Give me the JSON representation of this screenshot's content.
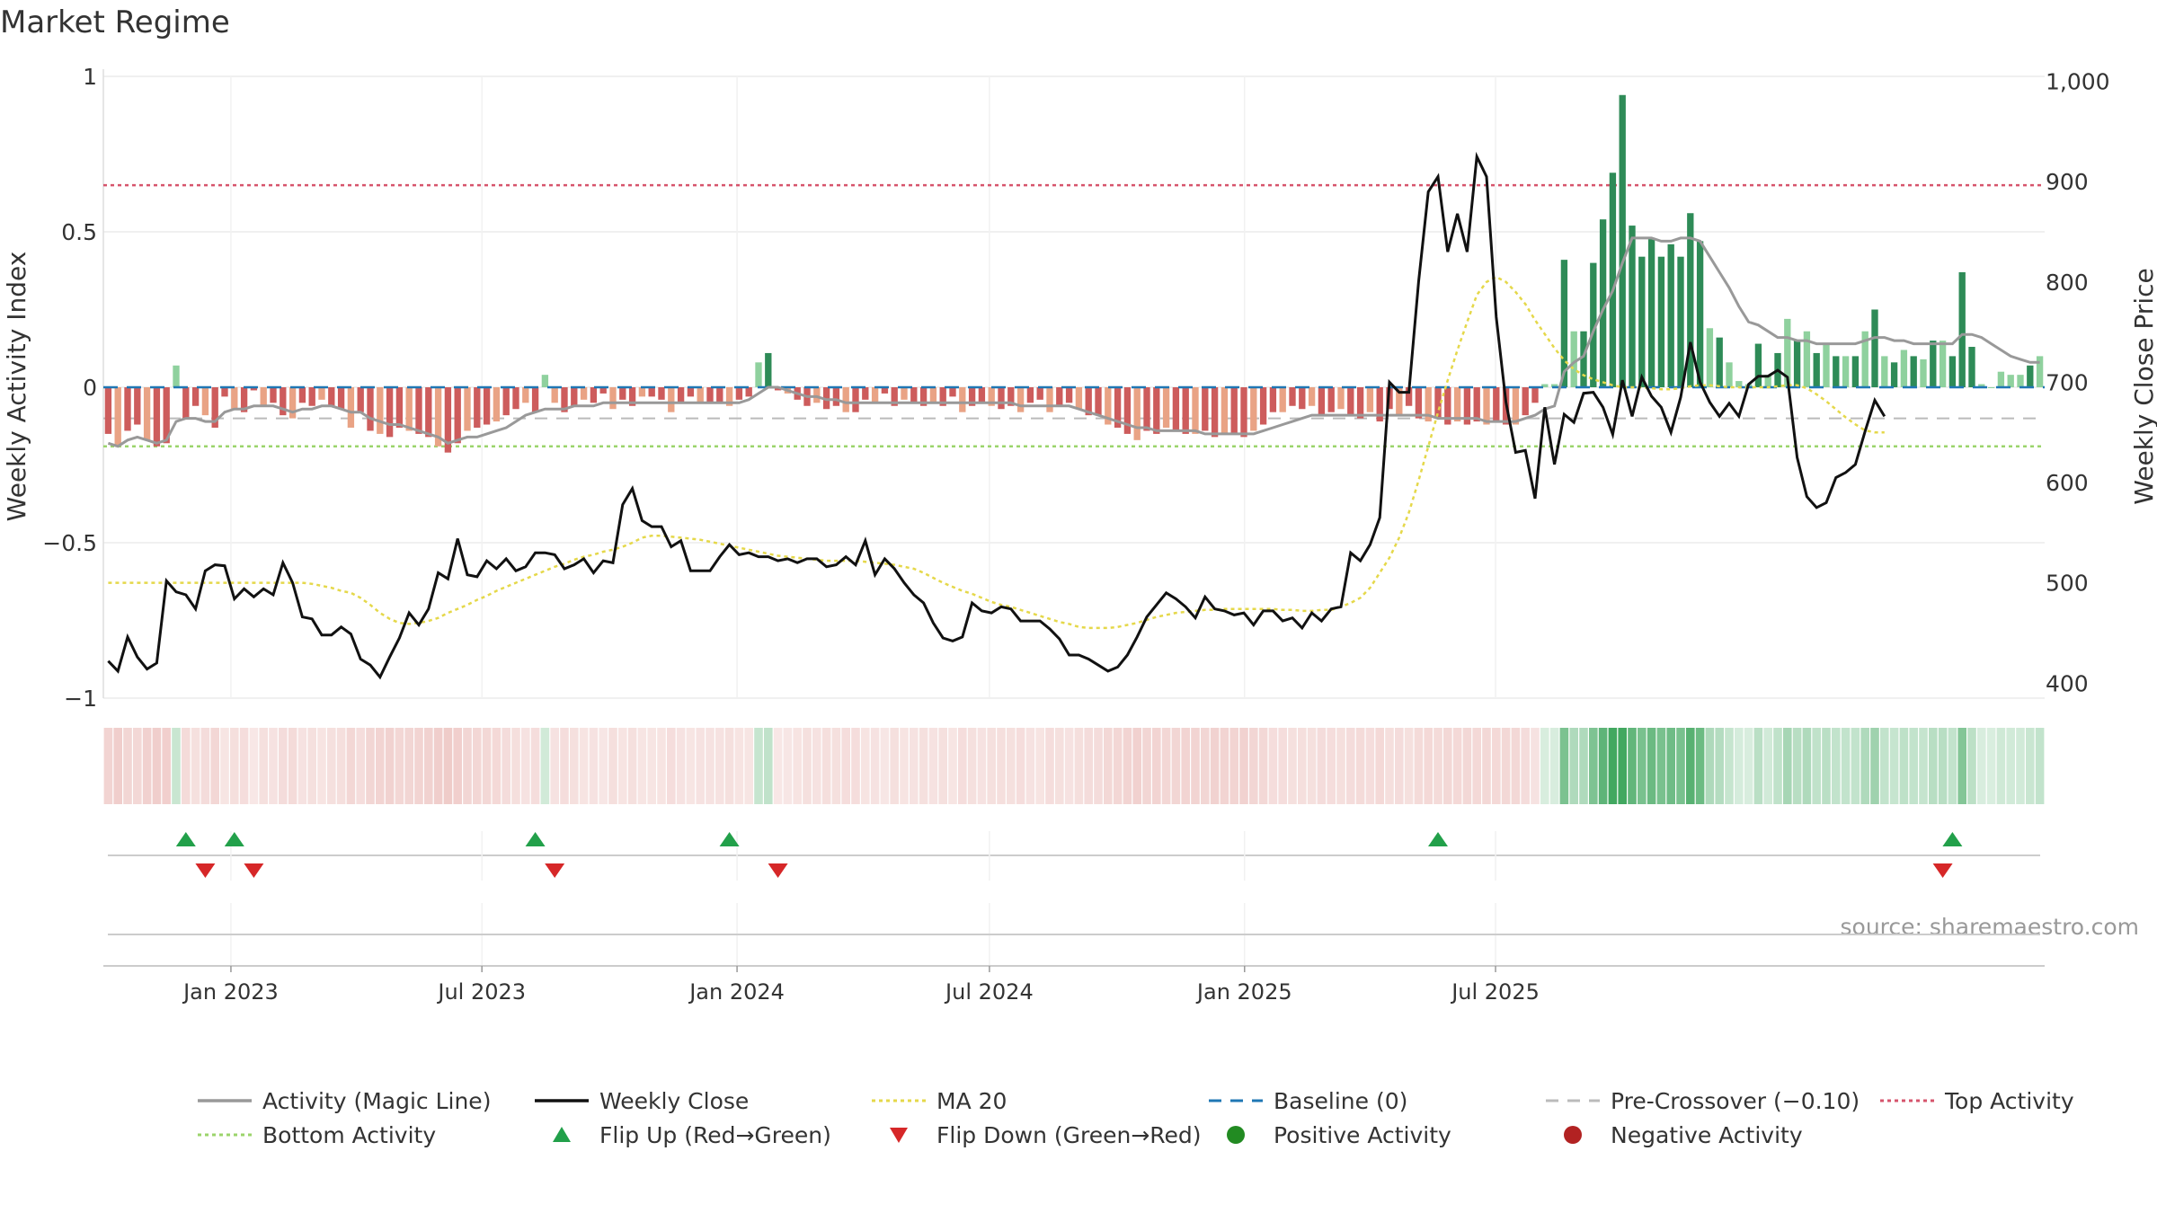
{
  "title": "Market Regime",
  "source": "source: sharemaestro.com",
  "colors": {
    "pos_dark": "#2e8b57",
    "pos_light": "#8fd19e",
    "neg_dark": "#cd5c5c",
    "neg_light": "#e9a385",
    "activity_line": "#999999",
    "close_line": "#111111",
    "ma_line": "#e5d84a",
    "baseline": "#1f77b4",
    "pre_crossover": "#bbbbbb",
    "top_line": "#d6546c",
    "bottom_line": "#9bd46b",
    "flip_up": "#22a04a",
    "flip_down": "#d62728",
    "pos_marker": "#228b22",
    "neg_marker": "#b22222",
    "strip_pos": "#2e9e4f",
    "strip_neg": "#d9827c"
  },
  "chart_data": {
    "type": "bar",
    "x_start": "2022-10-01",
    "x_step_days": 7,
    "x_ticks": [
      "Jan 2023",
      "Jul 2023",
      "Jan 2024",
      "Jul 2024",
      "Jan 2025",
      "Jul 2025"
    ],
    "left_axis": {
      "label": "Weekly Activity Index",
      "ylim": [
        -1,
        1
      ],
      "ticks": [
        "1",
        "0.5",
        "0",
        "−0.5",
        "−1"
      ]
    },
    "right_axis": {
      "label": "Weekly Close Price",
      "ylim": [
        385,
        1005
      ],
      "ticks": [
        "1,000",
        "900",
        "800",
        "700",
        "600",
        "500",
        "400"
      ]
    },
    "reference_lines": {
      "baseline": 0,
      "pre_crossover": -0.1,
      "top": 0.65,
      "bottom": -0.19
    },
    "activity": [
      -0.15,
      -0.19,
      -0.14,
      -0.12,
      -0.17,
      -0.19,
      -0.18,
      0.07,
      -0.1,
      -0.06,
      -0.09,
      -0.13,
      -0.03,
      -0.07,
      -0.08,
      -0.01,
      -0.06,
      -0.05,
      -0.09,
      -0.1,
      -0.05,
      -0.06,
      -0.04,
      -0.06,
      -0.07,
      -0.13,
      -0.08,
      -0.14,
      -0.15,
      -0.16,
      -0.13,
      -0.14,
      -0.15,
      -0.16,
      -0.19,
      -0.21,
      -0.18,
      -0.14,
      -0.13,
      -0.12,
      -0.11,
      -0.09,
      -0.07,
      -0.05,
      -0.08,
      0.04,
      -0.05,
      -0.08,
      -0.06,
      -0.04,
      -0.05,
      -0.02,
      -0.07,
      -0.04,
      -0.06,
      -0.03,
      -0.03,
      -0.04,
      -0.08,
      -0.05,
      -0.03,
      -0.05,
      -0.05,
      -0.05,
      -0.06,
      -0.04,
      -0.03,
      0.08,
      0.11,
      -0.01,
      -0.02,
      -0.04,
      -0.06,
      -0.05,
      -0.07,
      -0.06,
      -0.08,
      -0.08,
      -0.04,
      -0.05,
      -0.02,
      -0.06,
      -0.04,
      -0.05,
      -0.06,
      -0.05,
      -0.06,
      -0.03,
      -0.08,
      -0.06,
      -0.05,
      -0.06,
      -0.07,
      -0.06,
      -0.08,
      -0.05,
      -0.04,
      -0.08,
      -0.06,
      -0.05,
      -0.07,
      -0.09,
      -0.09,
      -0.12,
      -0.13,
      -0.15,
      -0.17,
      -0.14,
      -0.15,
      -0.13,
      -0.14,
      -0.15,
      -0.15,
      -0.14,
      -0.16,
      -0.15,
      -0.15,
      -0.16,
      -0.14,
      -0.12,
      -0.08,
      -0.08,
      -0.06,
      -0.07,
      -0.06,
      -0.09,
      -0.08,
      -0.07,
      -0.09,
      -0.1,
      -0.08,
      -0.11,
      -0.07,
      -0.09,
      -0.06,
      -0.1,
      -0.11,
      -0.1,
      -0.12,
      -0.11,
      -0.12,
      -0.11,
      -0.12,
      -0.11,
      -0.12,
      -0.12,
      -0.09,
      -0.05,
      0.01,
      0.01,
      0.41,
      0.18,
      0.18,
      0.4,
      0.54,
      0.69,
      0.94,
      0.52,
      0.42,
      0.48,
      0.42,
      0.46,
      0.42,
      0.56,
      0.47,
      0.19,
      0.16,
      0.08,
      0.02,
      0.01,
      0.14,
      0.04,
      0.11,
      0.22,
      0.15,
      0.18,
      0.11,
      0.14,
      0.1,
      0.1,
      0.1,
      0.18,
      0.25,
      0.1,
      0.08,
      0.12,
      0.1,
      0.09,
      0.15,
      0.15,
      0.1,
      0.37,
      0.13,
      0.01,
      0.0,
      0.05,
      0.04,
      0.04,
      0.07,
      0.1
    ],
    "magic_line": [
      -0.18,
      -0.19,
      -0.17,
      -0.16,
      -0.17,
      -0.18,
      -0.17,
      -0.11,
      -0.1,
      -0.1,
      -0.11,
      -0.11,
      -0.08,
      -0.07,
      -0.07,
      -0.06,
      -0.06,
      -0.06,
      -0.07,
      -0.08,
      -0.07,
      -0.07,
      -0.06,
      -0.06,
      -0.07,
      -0.08,
      -0.08,
      -0.1,
      -0.11,
      -0.12,
      -0.12,
      -0.13,
      -0.14,
      -0.15,
      -0.16,
      -0.18,
      -0.17,
      -0.16,
      -0.16,
      -0.15,
      -0.14,
      -0.13,
      -0.11,
      -0.09,
      -0.08,
      -0.07,
      -0.07,
      -0.07,
      -0.06,
      -0.06,
      -0.06,
      -0.05,
      -0.05,
      -0.05,
      -0.05,
      -0.05,
      -0.05,
      -0.05,
      -0.05,
      -0.05,
      -0.05,
      -0.05,
      -0.05,
      -0.05,
      -0.05,
      -0.05,
      -0.04,
      -0.02,
      0.0,
      0.0,
      -0.01,
      -0.02,
      -0.03,
      -0.03,
      -0.04,
      -0.04,
      -0.05,
      -0.05,
      -0.05,
      -0.05,
      -0.05,
      -0.05,
      -0.05,
      -0.05,
      -0.05,
      -0.05,
      -0.05,
      -0.05,
      -0.05,
      -0.05,
      -0.05,
      -0.05,
      -0.05,
      -0.05,
      -0.06,
      -0.06,
      -0.06,
      -0.06,
      -0.06,
      -0.06,
      -0.07,
      -0.08,
      -0.09,
      -0.1,
      -0.11,
      -0.12,
      -0.13,
      -0.13,
      -0.14,
      -0.14,
      -0.14,
      -0.14,
      -0.14,
      -0.15,
      -0.15,
      -0.15,
      -0.15,
      -0.15,
      -0.15,
      -0.14,
      -0.13,
      -0.12,
      -0.11,
      -0.1,
      -0.09,
      -0.09,
      -0.09,
      -0.09,
      -0.09,
      -0.09,
      -0.09,
      -0.09,
      -0.09,
      -0.09,
      -0.09,
      -0.09,
      -0.09,
      -0.1,
      -0.1,
      -0.1,
      -0.1,
      -0.1,
      -0.11,
      -0.11,
      -0.11,
      -0.11,
      -0.1,
      -0.09,
      -0.07,
      -0.06,
      0.05,
      0.08,
      0.1,
      0.18,
      0.25,
      0.31,
      0.4,
      0.48,
      0.48,
      0.48,
      0.47,
      0.47,
      0.48,
      0.48,
      0.47,
      0.42,
      0.37,
      0.32,
      0.26,
      0.21,
      0.2,
      0.18,
      0.16,
      0.16,
      0.15,
      0.15,
      0.14,
      0.14,
      0.14,
      0.14,
      0.14,
      0.15,
      0.16,
      0.16,
      0.15,
      0.15,
      0.14,
      0.14,
      0.14,
      0.14,
      0.14,
      0.17,
      0.17,
      0.16,
      0.14,
      0.12,
      0.1,
      0.09,
      0.08,
      0.08
    ],
    "weekly_close": [
      422,
      412,
      446,
      426,
      414,
      420,
      502,
      491,
      488,
      474,
      512,
      518,
      517,
      484,
      494,
      486,
      494,
      488,
      520,
      500,
      466,
      464,
      448,
      448,
      456,
      449,
      424,
      418,
      406,
      426,
      445,
      470,
      458,
      474,
      510,
      504,
      544,
      508,
      506,
      522,
      514,
      524,
      512,
      516,
      530,
      530,
      528,
      514,
      518,
      524,
      510,
      522,
      520,
      578,
      594,
      562,
      556,
      556,
      536,
      542,
      512,
      512,
      512,
      526,
      538,
      528,
      530,
      526,
      526,
      522,
      524,
      520,
      524,
      524,
      516,
      518,
      526,
      518,
      542,
      508,
      524,
      514,
      500,
      488,
      480,
      460,
      445,
      442,
      446,
      480,
      472,
      470,
      476,
      474,
      462,
      462,
      462,
      454,
      444,
      428,
      428,
      424,
      418,
      412,
      416,
      428,
      446,
      466,
      478,
      490,
      484,
      476,
      465,
      486,
      474,
      472,
      468,
      470,
      458,
      472,
      472,
      462,
      465,
      455,
      470,
      462,
      474,
      476,
      530,
      522,
      538,
      565,
      700,
      690,
      690,
      800,
      890,
      905,
      830,
      868,
      830,
      925,
      905,
      765,
      680,
      630,
      632,
      584,
      675,
      618,
      668,
      660,
      689,
      690,
      675,
      648,
      702,
      666,
      705,
      686,
      675,
      650,
      685,
      740,
      700,
      680,
      666,
      679,
      666,
      698,
      706,
      706,
      712,
      705,
      625,
      586,
      575,
      580,
      605,
      610,
      618,
      651,
      682,
      666
    ],
    "ma20": [
      500,
      500,
      500,
      500,
      500,
      500,
      500,
      500,
      500,
      500,
      500,
      500,
      500,
      500,
      500,
      500,
      500,
      500,
      500,
      500,
      500,
      499,
      497,
      495,
      492,
      490,
      485,
      478,
      470,
      464,
      460,
      459,
      460,
      462,
      465,
      470,
      474,
      478,
      483,
      487,
      492,
      496,
      500,
      504,
      508,
      512,
      516,
      519,
      523,
      526,
      528,
      531,
      533,
      536,
      540,
      545,
      547,
      547,
      546,
      545,
      544,
      543,
      541,
      539,
      537,
      535,
      533,
      531,
      529,
      527,
      526,
      525,
      524,
      523,
      522,
      522,
      522,
      522,
      521,
      520,
      519,
      518,
      516,
      514,
      510,
      505,
      500,
      496,
      492,
      489,
      485,
      481,
      478,
      476,
      473,
      470,
      467,
      464,
      461,
      459,
      456,
      455,
      455,
      455,
      456,
      458,
      460,
      463,
      466,
      468,
      470,
      471,
      472,
      473,
      473,
      474,
      474,
      474,
      474,
      474,
      474,
      473,
      473,
      472,
      472,
      473,
      473,
      476,
      480,
      485,
      495,
      510,
      525,
      545,
      570,
      602,
      636,
      670,
      702,
      732,
      760,
      787,
      800,
      805,
      800,
      790,
      778,
      762,
      748,
      734,
      722,
      713,
      707,
      703,
      700,
      697,
      695,
      695,
      695,
      694,
      693,
      693,
      694,
      696,
      697,
      697,
      696,
      695,
      695,
      695,
      695,
      695,
      696,
      697,
      697,
      694,
      688,
      681,
      673,
      665,
      658,
      652,
      650,
      650
    ],
    "flip_up_weeks": [
      8,
      13,
      44,
      64,
      137,
      190
    ],
    "flip_down_weeks": [
      10,
      15,
      46,
      69,
      189
    ],
    "legend": [
      {
        "key": "activity_line",
        "style": "line",
        "label": "Activity (Magic Line)"
      },
      {
        "key": "close_line",
        "style": "line",
        "label": "Weekly Close"
      },
      {
        "key": "ma_line",
        "style": "dotted",
        "label": "MA 20"
      },
      {
        "key": "baseline",
        "style": "dashed",
        "label": "Baseline (0)"
      },
      {
        "key": "pre_crossover",
        "style": "dashed",
        "label": "Pre-Crossover (−0.10)"
      },
      {
        "key": "top_line",
        "style": "dotted",
        "label": "Top Activity"
      },
      {
        "key": "bottom_line",
        "style": "dotted",
        "label": "Bottom Activity"
      },
      {
        "key": "flip_up",
        "style": "up",
        "label": "Flip Up (Red→Green)"
      },
      {
        "key": "flip_down",
        "style": "down",
        "label": "Flip Down (Green→Red)"
      },
      {
        "key": "pos_marker",
        "style": "dot",
        "label": "Positive Activity"
      },
      {
        "key": "neg_marker",
        "style": "dot",
        "label": "Negative Activity"
      }
    ]
  }
}
